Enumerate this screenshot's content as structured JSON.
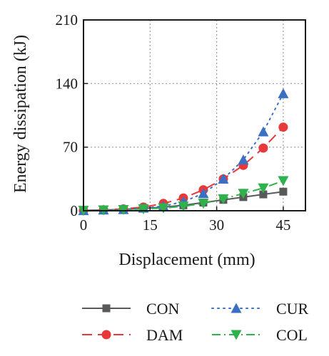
{
  "chart_data": {
    "type": "line",
    "xlabel": "Displacement (mm)",
    "ylabel": "Energy dissipation (kJ)",
    "xlim": [
      0,
      50
    ],
    "ylim": [
      0,
      210
    ],
    "x_ticks": [
      0,
      15,
      30,
      45
    ],
    "y_ticks": [
      0,
      70,
      140,
      210
    ],
    "grid": true,
    "grid_style": "dotted",
    "legend_placement": "bottom",
    "series": [
      {
        "name": "CON",
        "color": "#595959",
        "marker": "square",
        "line_style": "solid",
        "x": [
          0,
          4.5,
          9,
          13.5,
          18,
          22.5,
          27,
          31.5,
          36,
          40.5,
          45
        ],
        "y": [
          0.3,
          0.8,
          1.5,
          2.5,
          4,
          6,
          9,
          12,
          15,
          18,
          21
        ]
      },
      {
        "name": "DAM",
        "color": "#e8393a",
        "marker": "circle",
        "line_style": "dashed",
        "x": [
          0,
          4.5,
          9,
          13.5,
          18,
          22.5,
          27,
          31.5,
          36,
          40.5,
          45
        ],
        "y": [
          0.3,
          1,
          2,
          4,
          8,
          14,
          23,
          35,
          50,
          69,
          92
        ]
      },
      {
        "name": "CUR",
        "color": "#3a6fc4",
        "marker": "triangle-up",
        "line_style": "dotted",
        "x": [
          0,
          4.5,
          9,
          13.5,
          18,
          22.5,
          27,
          31.5,
          36,
          40.5,
          45
        ],
        "y": [
          0.3,
          1,
          1.5,
          3,
          5,
          10,
          19,
          35,
          56,
          87,
          129
        ]
      },
      {
        "name": "COL",
        "color": "#2fb24c",
        "marker": "triangle-down",
        "line_style": "dashdot",
        "x": [
          0,
          4.5,
          9,
          13.5,
          18,
          22.5,
          27,
          31.5,
          36,
          40.5,
          45
        ],
        "y": [
          0.3,
          0.8,
          1.2,
          2,
          3,
          5,
          8,
          13,
          19,
          25,
          33
        ]
      }
    ],
    "legend_order": [
      "CON",
      "CUR",
      "DAM",
      "COL"
    ]
  }
}
